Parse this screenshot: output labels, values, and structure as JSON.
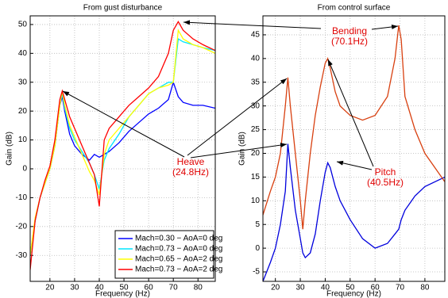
{
  "chart_data": [
    {
      "type": "line",
      "title": "From gust disturbance",
      "x_label": "Frequency (Hz)",
      "y_label": "Gain (dB)",
      "x": [
        12,
        14,
        16,
        18,
        20,
        22,
        24,
        25,
        26,
        28,
        30,
        33,
        36,
        38,
        40,
        42,
        44,
        48,
        52,
        56,
        60,
        64,
        68,
        70,
        72,
        74,
        78,
        82,
        87
      ],
      "series": [
        {
          "name": "Mach=0.30 − AoA=0 deg",
          "color": "#0000ff",
          "values": [
            -30,
            -18,
            -10,
            -5,
            0,
            8,
            22,
            25,
            20,
            12,
            8,
            5,
            3,
            5,
            4,
            5,
            6,
            9,
            13,
            16,
            19,
            21,
            24,
            30,
            25,
            23,
            22,
            22,
            21
          ]
        },
        {
          "name": "Mach=0.73 − AoA=0 deg",
          "color": "#00e5ff",
          "values": [
            -30,
            -18,
            -10,
            -5,
            0,
            8,
            22,
            26,
            21,
            14,
            10,
            6,
            2,
            -2,
            -7,
            3,
            7,
            12,
            18,
            22,
            26,
            28,
            30,
            30,
            45,
            44,
            43,
            42,
            41
          ]
        },
        {
          "name": "Mach=0.65 − AoA=2 deg",
          "color": "#ffff00",
          "values": [
            -30,
            -17,
            -10,
            -5,
            0,
            8,
            22,
            27,
            22,
            15,
            11,
            5,
            -1,
            -4,
            -9,
            5,
            10,
            14,
            18,
            22,
            26,
            28,
            29,
            30,
            48,
            45,
            43,
            42,
            40
          ]
        },
        {
          "name": "Mach=0.73 − AoA=2 deg",
          "color": "#ff0000",
          "values": [
            -35,
            -18,
            -10,
            -4,
            1,
            10,
            24,
            27,
            24,
            18,
            14,
            8,
            2,
            -2,
            -13,
            10,
            14,
            18,
            22,
            25,
            28,
            32,
            40,
            48,
            51,
            48,
            45,
            43,
            41
          ]
        }
      ],
      "xlim": [
        12,
        87
      ],
      "ylim": [
        -39,
        53
      ],
      "xticks": [
        20,
        30,
        40,
        50,
        60,
        70,
        80
      ],
      "yticks": [
        -30,
        -20,
        -10,
        0,
        10,
        20,
        30,
        40,
        50
      ],
      "grid": true,
      "legend": "lower right"
    },
    {
      "type": "line",
      "title": "From control surface",
      "x_label": "Frequency (Hz)",
      "y_label": "Gain (dB)",
      "x": [
        15,
        18,
        20,
        22,
        24,
        25,
        26,
        28,
        30,
        31,
        32,
        34,
        36,
        38,
        40,
        41,
        42,
        44,
        46,
        50,
        55,
        60,
        65,
        68,
        69.5,
        70.5,
        72,
        76,
        80,
        88
      ],
      "series": [
        {
          "color": "#0000dd",
          "values": [
            -7,
            -3,
            0,
            5,
            12,
            22,
            17,
            8,
            2,
            -1,
            -2,
            -1,
            3,
            10,
            16,
            18,
            17,
            13,
            10,
            6,
            2,
            0,
            1,
            3,
            4,
            6,
            8,
            11,
            13,
            15
          ]
        },
        {
          "color": "#d84010",
          "values": [
            7,
            12,
            15,
            20,
            30,
            36,
            30,
            20,
            10,
            4,
            10,
            20,
            28,
            34,
            39,
            40,
            38,
            33,
            30,
            28,
            27,
            28,
            32,
            40,
            47,
            44,
            32,
            25,
            20,
            14
          ]
        }
      ],
      "xlim": [
        15,
        88
      ],
      "ylim": [
        -7,
        49
      ],
      "xticks": [
        20,
        30,
        40,
        50,
        60,
        70,
        80
      ],
      "yticks": [
        -5,
        0,
        5,
        10,
        15,
        20,
        25,
        30,
        35,
        40,
        45
      ],
      "grid": true
    }
  ],
  "annotations": [
    {
      "label": "Bending",
      "freq": "(70.1Hz)"
    },
    {
      "label": "Heave",
      "freq": "(24.8Hz)"
    },
    {
      "label": "Pitch",
      "freq": "(40.5Hz)"
    }
  ]
}
